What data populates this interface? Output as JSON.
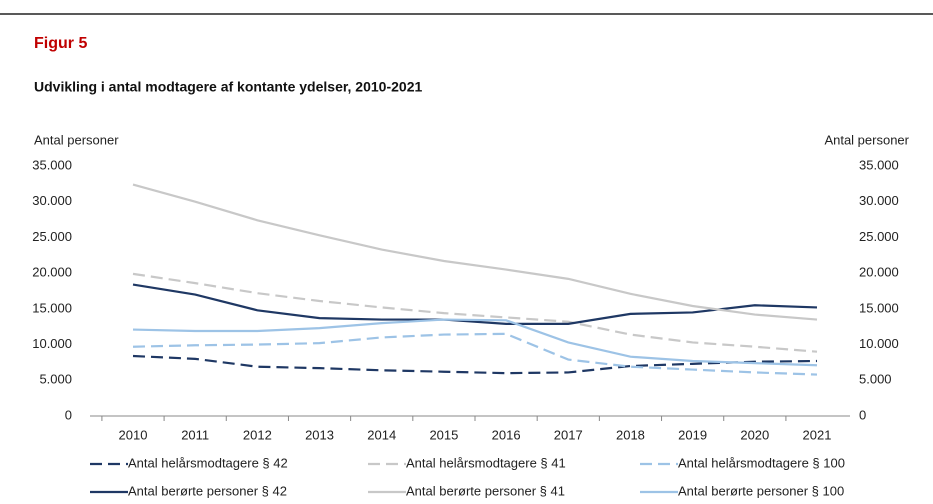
{
  "chart_data": {
    "type": "line",
    "title": "Figur 5",
    "subtitle": "Udvikling i antal modtagere af kontante ydelser, 2010-2021",
    "y_label": "Antal personer",
    "y2_label": "Antal personer",
    "categories": [
      "2010",
      "2011",
      "2012",
      "2013",
      "2014",
      "2015",
      "2016",
      "2017",
      "2018",
      "2019",
      "2020",
      "2021"
    ],
    "ylim": [
      0,
      35000
    ],
    "yticks": [
      0,
      {
        "value": 5000,
        "label": "5.000"
      },
      {
        "value": 10000,
        "label": "10.000"
      },
      {
        "value": 15000,
        "label": "15.000"
      },
      {
        "value": 20000,
        "label": "20.000"
      },
      {
        "value": 25000,
        "label": "25.000"
      },
      {
        "value": 30000,
        "label": "30.000"
      },
      {
        "value": 35000,
        "label": "35.000"
      }
    ],
    "series": [
      {
        "name": "Antal helårsmodtagere § 42",
        "color": "#1f3864",
        "dashed": true,
        "values": [
          8400,
          8000,
          6900,
          6700,
          6400,
          6200,
          6000,
          6100,
          7000,
          7300,
          7600,
          7700
        ]
      },
      {
        "name": "Antal helårsmodtagere  § 41",
        "color": "#c8c8c8",
        "dashed": true,
        "values": [
          19900,
          18600,
          17200,
          16100,
          15200,
          14400,
          13800,
          13200,
          11400,
          10300,
          9700,
          9000
        ]
      },
      {
        "name": "Antal helårsmodtagere § 100",
        "color": "#9dc3e6",
        "dashed": true,
        "values": [
          9700,
          9900,
          10000,
          10200,
          11000,
          11400,
          11500,
          7900,
          6900,
          6500,
          6100,
          5800
        ]
      },
      {
        "name": "Antal berørte personer § 42",
        "color": "#1f3864",
        "dashed": false,
        "values": [
          18400,
          17000,
          14800,
          13700,
          13500,
          13500,
          12900,
          12900,
          14300,
          14500,
          15500,
          15200
        ]
      },
      {
        "name": "Antal berørte personer  § 41",
        "color": "#c8c8c8",
        "dashed": false,
        "values": [
          32400,
          30000,
          27400,
          25300,
          23300,
          21700,
          20500,
          19200,
          17100,
          15400,
          14200,
          13500
        ]
      },
      {
        "name": "Antal berørte personer § 100",
        "color": "#9dc3e6",
        "dashed": false,
        "values": [
          12100,
          11900,
          11900,
          12300,
          13000,
          13500,
          13400,
          10300,
          8300,
          7700,
          7400,
          7100
        ]
      }
    ]
  }
}
